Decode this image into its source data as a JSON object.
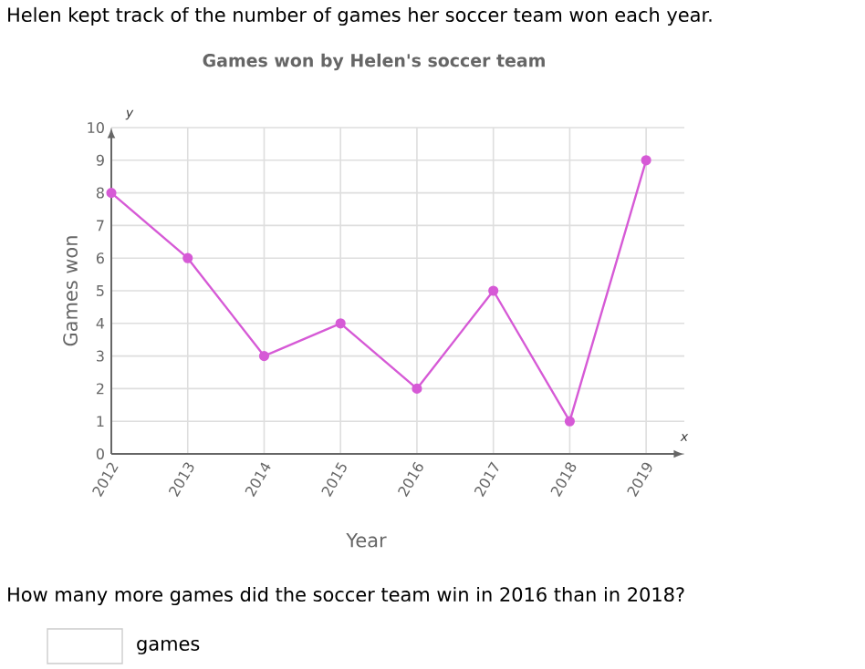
{
  "chart_data": {
    "type": "line",
    "title": "Games won by Helen's soccer team",
    "xlabel": "Year",
    "ylabel": "Games won",
    "annotations": [
      "Helen kept track of the number of games her soccer team won each year.",
      "y",
      "x",
      "How many more games did the soccer team win in 2016 than in 2018?",
      "games"
    ],
    "categories": [
      "2012",
      "2013",
      "2014",
      "2015",
      "2016",
      "2017",
      "2018",
      "2019"
    ],
    "values": [
      8,
      6,
      3,
      4,
      2,
      5,
      1,
      9
    ],
    "color": "#d65ad6",
    "marker": "circle",
    "grid": true,
    "ylim": [
      0,
      10
    ],
    "yticks": [
      0,
      1,
      2,
      3,
      4,
      5,
      6,
      7,
      8,
      9,
      10
    ]
  }
}
